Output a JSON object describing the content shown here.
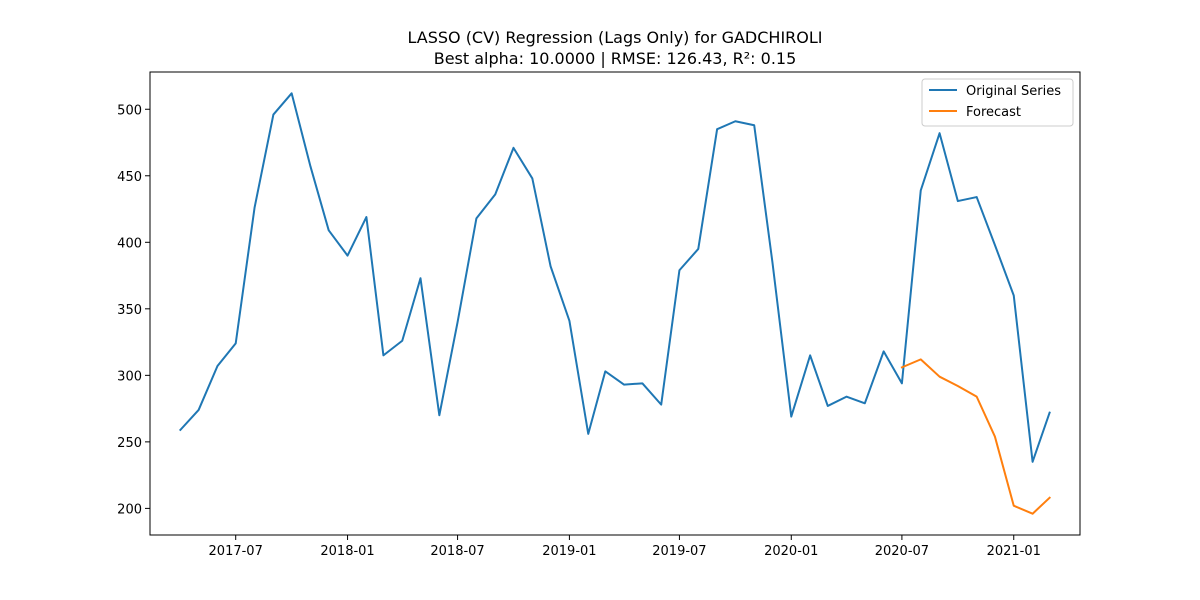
{
  "chart_data": {
    "type": "line",
    "title": "LASSO (CV) Regression (Lags Only) for GADCHIROLI",
    "subtitle": "Best alpha: 10.0000 | RMSE: 126.43, R²: 0.15",
    "xlabel": "",
    "ylabel": "",
    "x_ticks": [
      "2017-07",
      "2018-01",
      "2018-07",
      "2019-01",
      "2019-07",
      "2020-01",
      "2020-07",
      "2021-01"
    ],
    "y_ticks": [
      200,
      250,
      300,
      350,
      400,
      450,
      500
    ],
    "ylim": [
      180,
      528
    ],
    "xlim": [
      "2017-02-10",
      "2021-04-20"
    ],
    "grid": false,
    "legend_position": "top-right",
    "series": [
      {
        "name": "Original Series",
        "color": "#1f77b4",
        "x": [
          "2017-04",
          "2017-05",
          "2017-06",
          "2017-07",
          "2017-08",
          "2017-09",
          "2017-10",
          "2017-11",
          "2017-12",
          "2018-01",
          "2018-02",
          "2018-03",
          "2018-04",
          "2018-05",
          "2018-06",
          "2018-07",
          "2018-08",
          "2018-09",
          "2018-10",
          "2018-11",
          "2018-12",
          "2019-01",
          "2019-02",
          "2019-03",
          "2019-04",
          "2019-05",
          "2019-06",
          "2019-07",
          "2019-08",
          "2019-09",
          "2019-10",
          "2019-11",
          "2019-12",
          "2020-01",
          "2020-02",
          "2020-03",
          "2020-04",
          "2020-05",
          "2020-06",
          "2020-07",
          "2020-08",
          "2020-09",
          "2020-10",
          "2020-11",
          "2020-12",
          "2021-01",
          "2021-02",
          "2021-03"
        ],
        "values": [
          259,
          274,
          307,
          324,
          426,
          496,
          512,
          457,
          409,
          390,
          419,
          315,
          326,
          373,
          270,
          340,
          418,
          436,
          471,
          448,
          382,
          341,
          256,
          303,
          293,
          294,
          278,
          379,
          395,
          485,
          491,
          488,
          385,
          269,
          315,
          277,
          284,
          279,
          318,
          294,
          439,
          482,
          431,
          434,
          398,
          360,
          235,
          272
        ]
      },
      {
        "name": "Forecast",
        "color": "#ff7f0e",
        "x": [
          "2020-07",
          "2020-08",
          "2020-09",
          "2020-10",
          "2020-11",
          "2020-12",
          "2021-01",
          "2021-02",
          "2021-03"
        ],
        "values": [
          306,
          312,
          299,
          292,
          284,
          254,
          202,
          196,
          208
        ]
      }
    ]
  }
}
